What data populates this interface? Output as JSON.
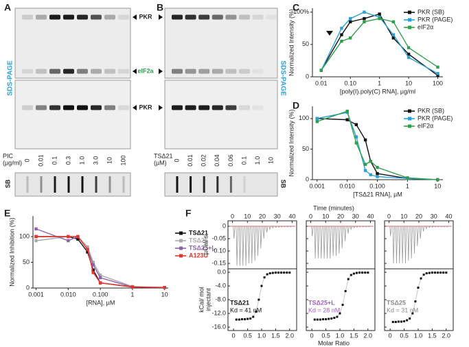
{
  "gel_a": {
    "letter": "A",
    "side_label": "SDS-PAGE",
    "markers": [
      "PKR",
      "eIF2a",
      "PKR"
    ],
    "lane_title": [
      "PIC",
      "(µg/ml)"
    ],
    "lanes": [
      "0",
      "0.01",
      "0.1",
      "0.3",
      "1.0",
      "3.0",
      "10",
      "100"
    ],
    "sb_label": "SB"
  },
  "gel_b": {
    "letter": "B",
    "side_label": "SDS-PAGE",
    "lane_title": [
      "TSΔ21",
      "(µM)"
    ],
    "lanes": [
      "0",
      "0.01",
      "0.02",
      "0.04",
      "0.06",
      "0.1",
      "1.0",
      "10"
    ],
    "sb_label": "SB"
  },
  "chart_data": [
    {
      "type": "line",
      "title": "C",
      "xscale": "log",
      "x_label": "[poly(I).poly(C) RNA], µg/ml",
      "y_label": "Normalized Intensity (%)",
      "legend": "upper right",
      "x": [
        0.01,
        0.05,
        0.1,
        0.3,
        1,
        3,
        10,
        100
      ],
      "xlim": [
        0.005,
        150
      ],
      "xticks": [
        0.01,
        {
          "value": 0.1,
          "label": "0.10"
        },
        1,
        10,
        100
      ],
      "ylim": [
        0,
        106
      ],
      "yticks": [
        0,
        50,
        {
          "value": 100,
          "label": "100%"
        }
      ],
      "series": [
        {
          "name": "PKR (SB)",
          "color": "#111111",
          "values": [
            10,
            65,
            85,
            90,
            97,
            60,
            35,
            2
          ]
        },
        {
          "name": "PKR (PAGE)",
          "color": "#2b9fd8",
          "values": [
            10,
            75,
            90,
            100,
            92,
            65,
            30,
            5
          ]
        },
        {
          "name": "eIF2α",
          "color": "#2e9e4a",
          "values": [
            10,
            55,
            60,
            85,
            90,
            85,
            45,
            15
          ]
        }
      ]
    },
    {
      "type": "line",
      "title": "D",
      "xscale": "log",
      "x_label": "[TSΔ21 RNA], µM",
      "y_label": "Normalized Intensity (%)",
      "legend": "upper right",
      "x": [
        0.001,
        0.01,
        0.02,
        0.04,
        0.06,
        0.1,
        1,
        10
      ],
      "xlim": [
        0.0007,
        15
      ],
      "xticks": [
        0.001,
        {
          "value": 0.01,
          "label": "0.010"
        },
        {
          "value": 0.1,
          "label": "0.100"
        },
        1,
        10
      ],
      "ylim": [
        0,
        120
      ],
      "yticks": [
        0,
        50,
        100
      ],
      "series": [
        {
          "name": "PKR (SB)",
          "color": "#111111",
          "values": [
            100,
            98,
            90,
            65,
            30,
            10,
            2,
            0
          ]
        },
        {
          "name": "PKR (PAGE)",
          "color": "#2b9fd8",
          "values": [
            100,
            110,
            70,
            15,
            8,
            5,
            2,
            0
          ]
        },
        {
          "name": "eIF2α",
          "color": "#2e9e4a",
          "values": [
            95,
            112,
            60,
            25,
            30,
            20,
            3,
            0
          ]
        }
      ]
    },
    {
      "type": "line",
      "title": "E",
      "xscale": "log",
      "x_label": "[RNA], µM",
      "y_label": "Normalized Inhibition (%)",
      "legend": "right",
      "x": [
        0.001,
        0.01,
        0.02,
        0.04,
        0.06,
        0.1,
        1,
        10
      ],
      "xlim": [
        0.0008,
        13
      ],
      "xticks": [
        0.001,
        {
          "value": 0.01,
          "label": "0.010"
        },
        {
          "value": 0.1,
          "label": "0.100"
        },
        1,
        10
      ],
      "ylim": [
        0,
        140
      ],
      "yticks": [
        0,
        50,
        100
      ],
      "series": [
        {
          "name": "TSΔ21",
          "color": "#111111",
          "values": [
            100,
            100,
            95,
            70,
            35,
            10,
            2,
            1
          ]
        },
        {
          "name": "TSΔ25",
          "color": "#a8a8a8",
          "values": [
            92,
            100,
            100,
            80,
            50,
            25,
            3,
            1
          ]
        },
        {
          "name": "TSΔ25+L",
          "color": "#8e5fb0",
          "values": [
            115,
            92,
            100,
            75,
            45,
            20,
            2,
            1
          ]
        },
        {
          "name": "A123U",
          "color": "#e8322b",
          "values": [
            100,
            100,
            100,
            75,
            30,
            10,
            2,
            1
          ]
        }
      ]
    },
    {
      "type": "itc",
      "title": "F",
      "time_label": "Time (minutes)",
      "time_lim": [
        -3,
        43
      ],
      "time_ticks": [
        0,
        10,
        20,
        30,
        40
      ],
      "power_label": "µCal/ s",
      "power_lim": [
        -0.172,
        0.022
      ],
      "power_ticks": [
        0,
        -0.05,
        {
          "value": -0.1,
          "label": "-0.10"
        },
        -0.15
      ],
      "heat_label": [
        "kCal/ mol",
        "injectant"
      ],
      "heat_lim": [
        -17,
        1
      ],
      "heat_ticks": [
        {
          "value": 0,
          "label": "0.0"
        },
        {
          "value": -4,
          "label": "-4.0"
        },
        {
          "value": -8,
          "label": "-8.0"
        },
        {
          "value": -12,
          "label": "-12.0"
        },
        {
          "value": -16,
          "label": "-16.0"
        }
      ],
      "ratio_label": "Molar Ratio",
      "ratio_lim": [
        -0.2,
        2.25
      ],
      "ratio_ticks": [
        0,
        0.5,
        {
          "value": 1,
          "label": "1.0"
        },
        1.5,
        {
          "value": 2,
          "label": "2.0"
        }
      ],
      "time": [
        1,
        3,
        5,
        7,
        9,
        11,
        13,
        15,
        17,
        19,
        21,
        23,
        25,
        27,
        29,
        31,
        33,
        35,
        37,
        39
      ],
      "ratio": [
        0.1,
        0.2,
        0.3,
        0.4,
        0.5,
        0.6,
        0.7,
        0.8,
        0.9,
        1.0,
        1.1,
        1.2,
        1.3,
        1.4,
        1.5,
        1.6,
        1.7,
        1.8,
        1.9,
        2.0
      ],
      "panels": [
        {
          "name": "TSΔ21",
          "kd": "Kd = 41 nM",
          "color": "#111111",
          "power": [
            -0.05,
            -0.16,
            -0.16,
            -0.16,
            -0.16,
            -0.15,
            -0.15,
            -0.14,
            -0.12,
            -0.09,
            -0.05,
            -0.025,
            -0.012,
            -0.007,
            -0.005,
            -0.004,
            -0.003,
            -0.003,
            -0.003,
            -0.003
          ],
          "heat": [
            -13.8,
            -13.8,
            -13.7,
            -13.7,
            -13.6,
            -13.5,
            -13.0,
            -11.5,
            -8,
            -4,
            -1.5,
            -0.6,
            -0.3,
            -0.2,
            -0.1,
            -0.1,
            -0.1,
            -0.1,
            -0.1,
            -0.1
          ]
        },
        {
          "name": "TSΔ25+L",
          "kd": "Kd = 28 nM",
          "color": "#a35fc0",
          "power": [
            -0.04,
            -0.13,
            -0.13,
            -0.13,
            -0.13,
            -0.13,
            -0.13,
            -0.12,
            -0.12,
            -0.11,
            -0.09,
            -0.06,
            -0.03,
            -0.012,
            -0.006,
            -0.004,
            -0.003,
            -0.003,
            -0.003,
            -0.003
          ],
          "heat": [
            -13.8,
            -13.8,
            -13.8,
            -13.7,
            -13.7,
            -13.6,
            -13.5,
            -13.3,
            -13.0,
            -12.0,
            -9.5,
            -5.5,
            -2,
            -0.8,
            -0.4,
            -0.2,
            -0.1,
            -0.1,
            -0.1,
            -0.1
          ]
        },
        {
          "name": "TSΔ25",
          "kd": "Kd = 31 nM",
          "color": "#888888",
          "power": [
            -0.04,
            -0.15,
            -0.15,
            -0.15,
            -0.15,
            -0.15,
            -0.14,
            -0.13,
            -0.11,
            -0.08,
            -0.05,
            -0.02,
            -0.01,
            -0.006,
            -0.004,
            -0.003,
            -0.003,
            -0.003,
            -0.003,
            -0.003
          ],
          "heat": [
            -14.5,
            -14.5,
            -14.4,
            -14.4,
            -14.3,
            -14.0,
            -13.5,
            -12,
            -8.5,
            -4.5,
            -1.8,
            -0.7,
            -0.3,
            -0.2,
            -0.1,
            -0.1,
            -0.1,
            -0.1,
            -0.1,
            -0.1
          ]
        }
      ]
    }
  ]
}
